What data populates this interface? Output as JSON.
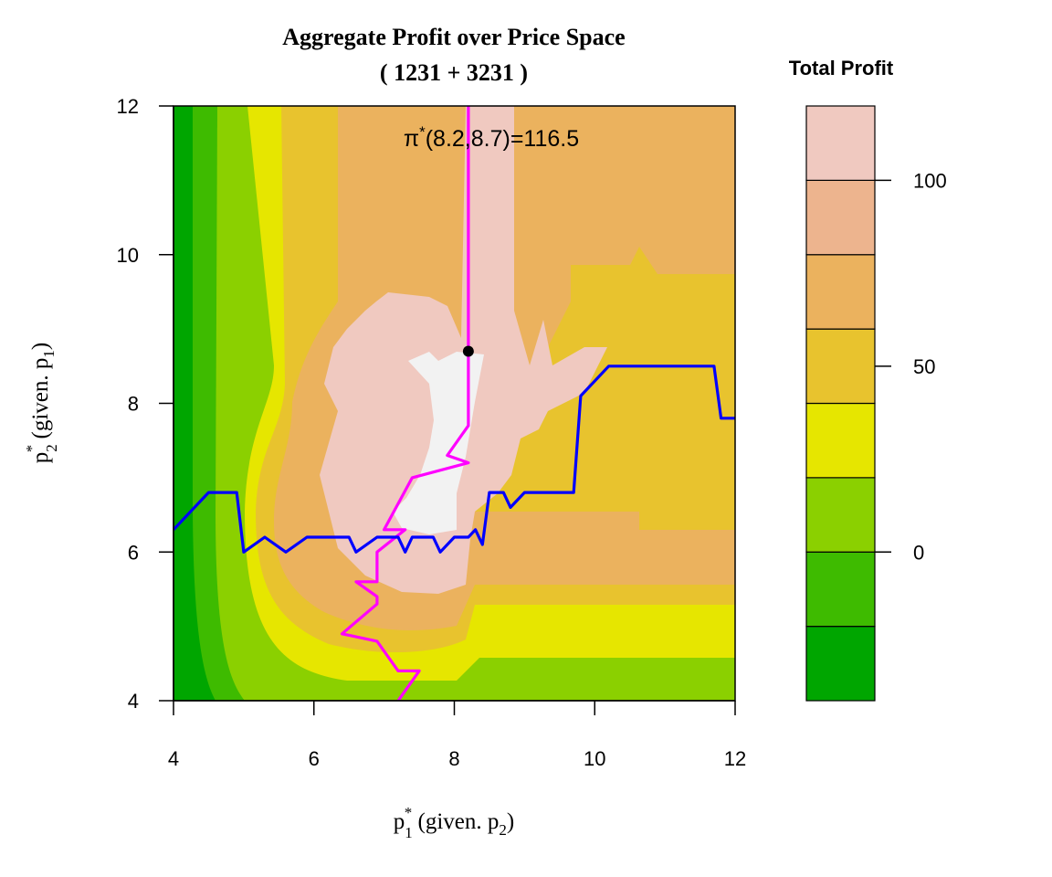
{
  "chart_data": {
    "type": "heatmap",
    "title": "Aggregate Profit over Price Space",
    "subtitle": "( 1231 + 3231 )",
    "xlabel": {
      "main": "p",
      "sub": "1",
      "sup": "*",
      "suffix": " (given. p",
      "suffix_sub": "2",
      "suffix_end": ")"
    },
    "ylabel": {
      "main": "p",
      "sub": "2",
      "sup": "*",
      "suffix": " (given. p",
      "suffix_sub": "1",
      "suffix_end": ")"
    },
    "xlim": [
      4,
      12
    ],
    "ylim": [
      4,
      12
    ],
    "x_ticks": [
      4,
      6,
      8,
      10,
      12
    ],
    "y_ticks": [
      4,
      6,
      8,
      10,
      12
    ],
    "legend": {
      "title": "Total Profit",
      "placement": "right",
      "levels": [
        -40,
        -20,
        0,
        20,
        40,
        60,
        80,
        100,
        120
      ],
      "colors": [
        "#00A600",
        "#3EBB00",
        "#8BD000",
        "#E6E600",
        "#E8C32E",
        "#EBB25E",
        "#EDB48E",
        "#F0C9C0",
        "#F2F2F2"
      ],
      "ticks": [
        0,
        50,
        100
      ]
    },
    "contour_bands": {
      "outer_to_inner_colors": [
        "#00A600",
        "#3EBB00",
        "#8BD000",
        "#E6E600",
        "#E8C32E",
        "#EBB25E",
        "#F0C9C0",
        "#F2F2F2"
      ]
    },
    "optimum": {
      "p1": 8.2,
      "p2": 8.7,
      "label_base": "π",
      "label_sup": "*",
      "label_rest": "(8.2,8.7)=116.5"
    },
    "series": [
      {
        "color": "#FF00FF",
        "points": [
          [
            8.2,
            12
          ],
          [
            8.2,
            7.7
          ],
          [
            7.9,
            7.3
          ],
          [
            8.2,
            7.2
          ],
          [
            7.4,
            7.0
          ],
          [
            7.0,
            6.3
          ],
          [
            7.3,
            6.3
          ],
          [
            6.9,
            6.0
          ],
          [
            6.9,
            5.6
          ],
          [
            6.6,
            5.6
          ],
          [
            6.9,
            5.4
          ],
          [
            6.9,
            5.3
          ],
          [
            6.4,
            4.9
          ],
          [
            6.9,
            4.8
          ],
          [
            7.2,
            4.4
          ],
          [
            7.5,
            4.4
          ],
          [
            7.2,
            4.0
          ]
        ]
      },
      {
        "color": "#0000FF",
        "points": [
          [
            4.0,
            6.3
          ],
          [
            4.5,
            6.8
          ],
          [
            4.9,
            6.8
          ],
          [
            5.0,
            6.0
          ],
          [
            5.3,
            6.2
          ],
          [
            5.6,
            6.0
          ],
          [
            5.9,
            6.2
          ],
          [
            6.5,
            6.2
          ],
          [
            6.6,
            6.0
          ],
          [
            6.9,
            6.2
          ],
          [
            7.2,
            6.2
          ],
          [
            7.3,
            6.0
          ],
          [
            7.4,
            6.2
          ],
          [
            7.7,
            6.2
          ],
          [
            7.8,
            6.0
          ],
          [
            8.0,
            6.2
          ],
          [
            8.2,
            6.2
          ],
          [
            8.3,
            6.3
          ],
          [
            8.4,
            6.1
          ],
          [
            8.5,
            6.8
          ],
          [
            8.7,
            6.8
          ],
          [
            8.8,
            6.6
          ],
          [
            9.0,
            6.8
          ],
          [
            9.7,
            6.8
          ],
          [
            9.8,
            8.1
          ],
          [
            10.2,
            8.5
          ],
          [
            11.7,
            8.5
          ],
          [
            11.8,
            7.8
          ],
          [
            12,
            7.8
          ]
        ]
      }
    ]
  }
}
